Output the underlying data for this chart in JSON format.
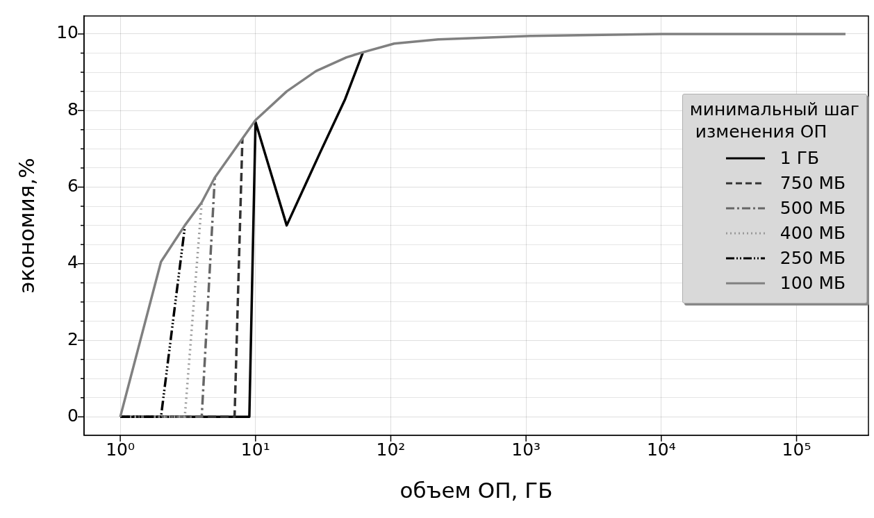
{
  "chart_data": {
    "type": "line",
    "xlabel": "объем ОП, ГБ",
    "ylabel": "экономия,%",
    "legend_title": "минимальный шаг\n изменения ОП",
    "legend": "right",
    "grid": true,
    "log": "x",
    "marker": "none",
    "xlim": [
      0.54,
      340000
    ],
    "xticks": [
      {
        "value": 1,
        "label": "10⁰"
      },
      {
        "value": 10,
        "label": "10¹"
      },
      {
        "value": 100,
        "label": "10²"
      },
      {
        "value": 1000,
        "label": "10³"
      },
      {
        "value": 10000,
        "label": "10⁴"
      },
      {
        "value": 100000,
        "label": "10⁵"
      }
    ],
    "ylim": [
      -0.48,
      10.47
    ],
    "yticks": [
      0,
      {
        "value": 0.5,
        "label": null
      },
      2,
      {
        "value": 1,
        "label": null
      },
      {
        "value": 1.5,
        "label": null
      },
      {
        "value": 2.5,
        "label": null
      },
      {
        "value": 3,
        "label": null
      },
      {
        "value": 3.5,
        "label": null
      },
      4,
      {
        "value": 4.5,
        "label": null
      },
      {
        "value": 5,
        "label": null
      },
      {
        "value": 5.5,
        "label": null
      },
      6,
      {
        "value": 6.5,
        "label": null
      },
      {
        "value": 7,
        "label": null
      },
      {
        "value": 7.5,
        "label": null
      },
      8,
      {
        "value": 8.5,
        "label": null
      },
      {
        "value": 9,
        "label": null
      },
      {
        "value": 9.5,
        "label": null
      },
      10
    ],
    "series": [
      {
        "name": "1 ГБ",
        "color": "#000000",
        "line_style": "solid",
        "x": [
          1,
          9,
          10,
          17,
          30,
          46,
          62
        ],
        "values": [
          0,
          0,
          7.7,
          5.0,
          6.9,
          8.3,
          9.5
        ]
      },
      {
        "name": "750 МБ",
        "color": "#333333",
        "line_style": "dashed",
        "x": [
          1,
          7,
          8
        ],
        "values": [
          0,
          0,
          7.27
        ]
      },
      {
        "name": "500 МБ",
        "color": "#666666",
        "line_style": "dashdot",
        "x": [
          1,
          4,
          5
        ],
        "values": [
          0,
          0,
          6.25
        ]
      },
      {
        "name": "400 МБ",
        "color": "#999999",
        "line_style": "dotted",
        "x": [
          1,
          3,
          4
        ],
        "values": [
          0,
          0,
          5.6
        ]
      },
      {
        "name": "250 МБ",
        "color": "#000000",
        "line_style": "dashdotdot",
        "x": [
          1,
          2,
          3
        ],
        "values": [
          0,
          0,
          4.95
        ]
      },
      {
        "name": "100 МБ",
        "color": "#808080",
        "line_style": "solid",
        "x": [
          1,
          2,
          3,
          4,
          5,
          8,
          10,
          17,
          28,
          47,
          62,
          106,
          224,
          1100,
          10000,
          230000
        ],
        "values": [
          0,
          4.05,
          5.0,
          5.6,
          6.25,
          7.27,
          7.75,
          8.5,
          9.03,
          9.39,
          9.52,
          9.75,
          9.86,
          9.95,
          10.0,
          10.0
        ]
      }
    ]
  }
}
